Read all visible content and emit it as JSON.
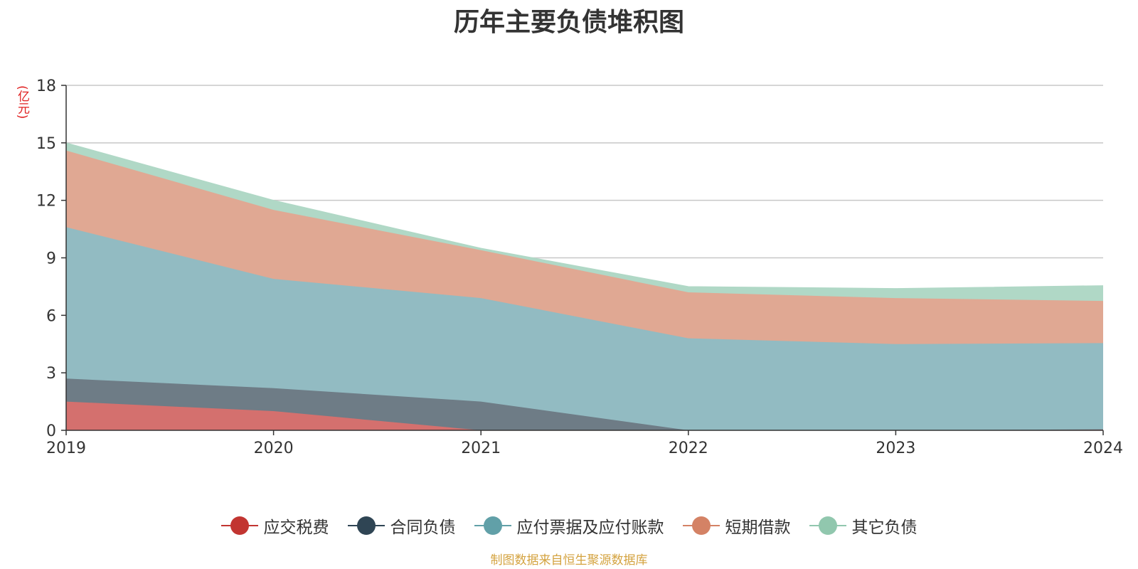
{
  "title": "历年主要负债堆积图",
  "unit_label": "(亿元)",
  "source": "制图数据来自恒生聚源数据库",
  "chart_data": {
    "type": "area",
    "stacked": true,
    "title": "历年主要负债堆积图",
    "ylabel": "(亿元)",
    "x": [
      "2019",
      "2020",
      "2021",
      "2022",
      "2023",
      "2024"
    ],
    "ylim": [
      0,
      18
    ],
    "yticks": [
      0,
      3,
      6,
      9,
      12,
      15,
      18
    ],
    "grid": true,
    "legend_position": "bottom",
    "series": [
      {
        "name": "应交税费",
        "color": "#c23531",
        "fill": "#d4706e",
        "values": [
          1.5,
          1.0,
          0.0,
          0.0,
          0.0,
          0.05
        ]
      },
      {
        "name": "合同负债",
        "color": "#2f4554",
        "fill": "#6e7c86",
        "values": [
          1.2,
          1.2,
          1.5,
          0.0,
          0.0,
          0.0
        ]
      },
      {
        "name": "应付票据及应付账款",
        "color": "#61a0a8",
        "fill": "#92bbc2",
        "values": [
          7.9,
          5.7,
          5.4,
          4.8,
          4.5,
          4.5
        ]
      },
      {
        "name": "短期借款",
        "color": "#d48265",
        "fill": "#e0a893",
        "values": [
          4.0,
          3.6,
          2.5,
          2.4,
          2.4,
          2.2
        ]
      },
      {
        "name": "其它负债",
        "color": "#91c7ae",
        "fill": "#b0d8c6",
        "values": [
          0.4,
          0.5,
          0.1,
          0.3,
          0.5,
          0.8
        ]
      }
    ]
  }
}
